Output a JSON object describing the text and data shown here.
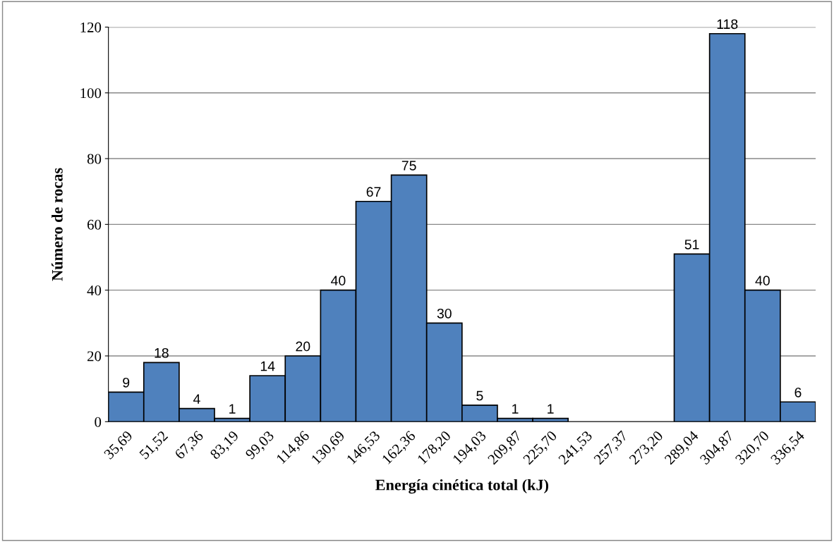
{
  "chart_data": {
    "type": "bar",
    "xlabel": "Energía cinética total (kJ)",
    "ylabel": "Número de rocas",
    "categories": [
      "35,69",
      "51,52",
      "67,36",
      "83,19",
      "99,03",
      "114,86",
      "130,69",
      "146,53",
      "162,36",
      "178,20",
      "194,03",
      "209,87",
      "225,70",
      "241,53",
      "257,37",
      "273,20",
      "289,04",
      "304,87",
      "320,70",
      "336,54"
    ],
    "values": [
      9,
      18,
      4,
      1,
      14,
      20,
      40,
      67,
      75,
      30,
      5,
      1,
      1,
      null,
      null,
      null,
      51,
      118,
      40,
      6
    ],
    "color": "#4f81bd",
    "ylim": [
      0,
      120
    ],
    "yticks": [
      0,
      20,
      40,
      60,
      80,
      100,
      120
    ],
    "grid": "y",
    "data_labels": true
  }
}
